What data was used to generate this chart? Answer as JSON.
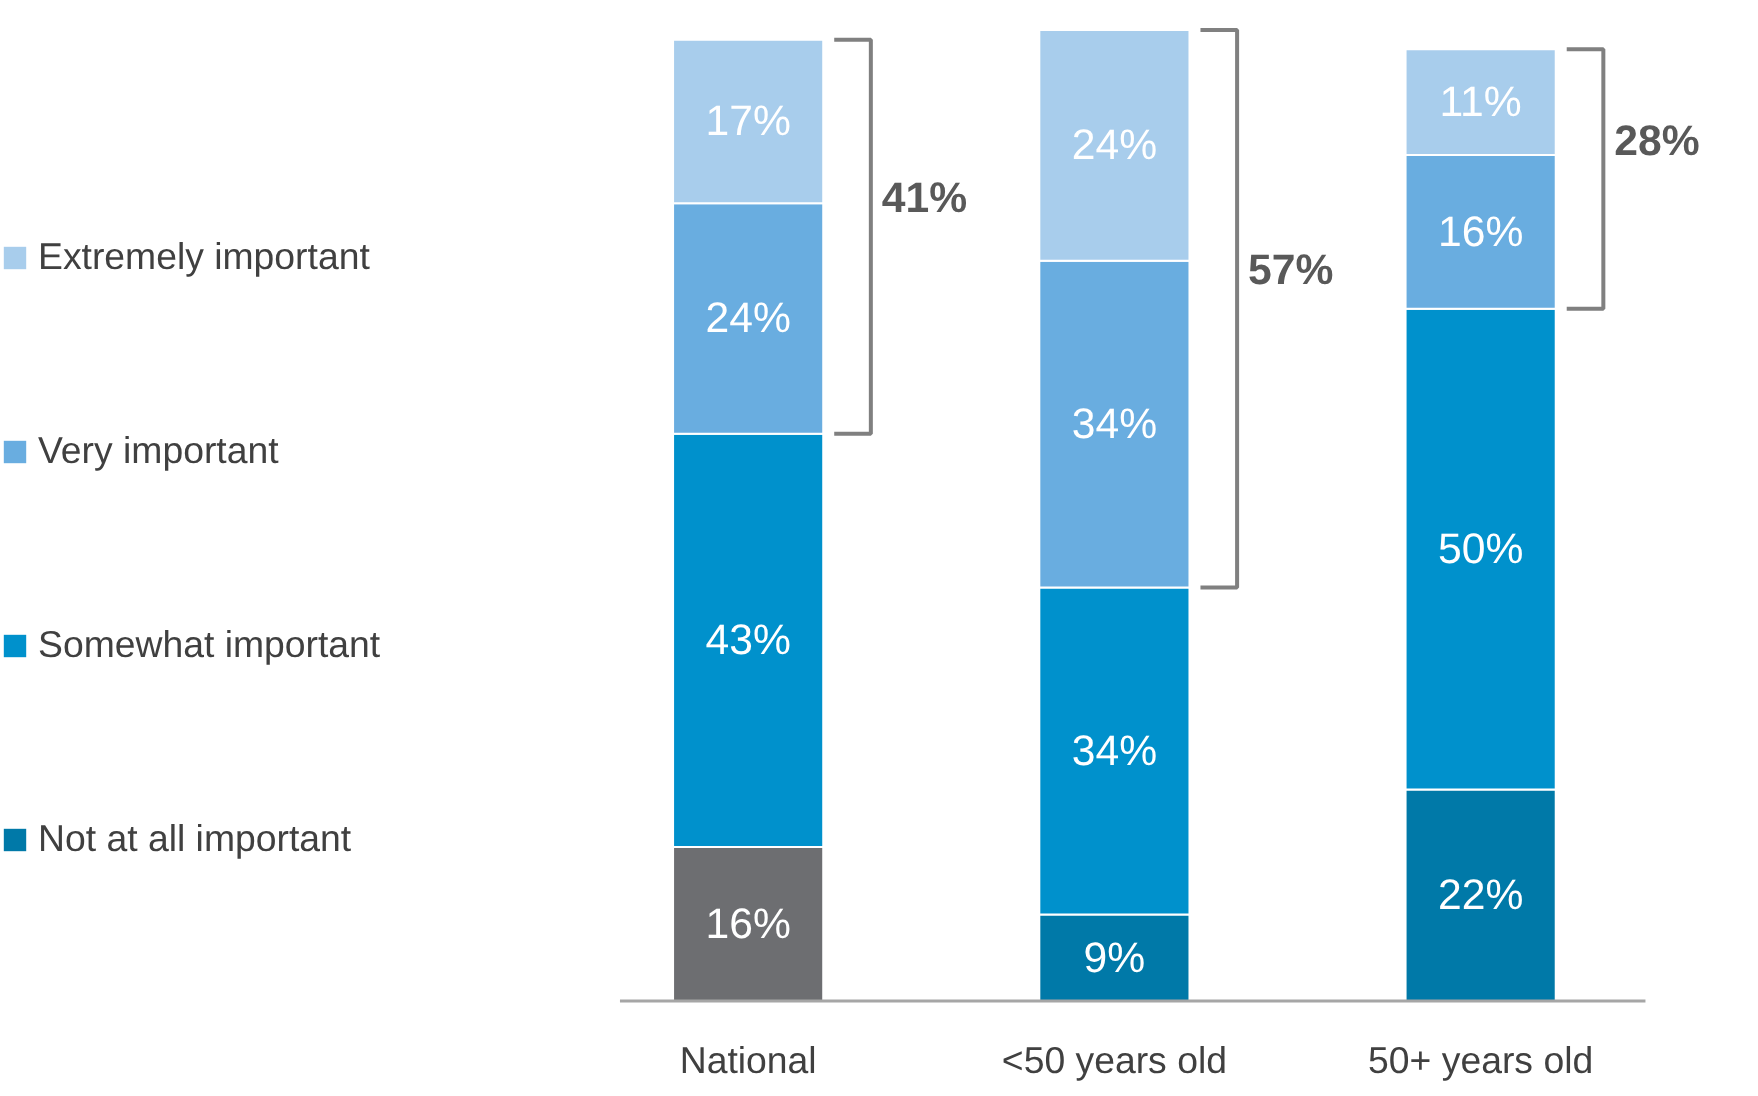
{
  "chart_data": {
    "type": "bar",
    "stacked": true,
    "categories": [
      "National",
      "<50 years old",
      "50+ years old"
    ],
    "series": [
      {
        "name": "Not at all important",
        "color": "#0079a8",
        "colors": [
          "#6d6e71",
          "#0079a8",
          "#0079a8"
        ],
        "values": [
          16,
          9,
          22
        ],
        "value_labels": [
          "16%",
          "9%",
          "22%"
        ]
      },
      {
        "name": "Somewhat important",
        "color": "#0091cc",
        "values": [
          43,
          34,
          50
        ],
        "value_labels": [
          "43%",
          "34%",
          "50%"
        ]
      },
      {
        "name": "Very important",
        "color": "#69ade0",
        "values": [
          24,
          34,
          16
        ],
        "value_labels": [
          "24%",
          "34%",
          "16%"
        ]
      },
      {
        "name": "Extremely important",
        "color": "#a8cdec",
        "values": [
          17,
          24,
          11
        ],
        "value_labels": [
          "17%",
          "24%",
          "11%"
        ]
      }
    ],
    "legend": "left",
    "annotations": [
      "41%",
      "57%",
      "28%"
    ]
  }
}
